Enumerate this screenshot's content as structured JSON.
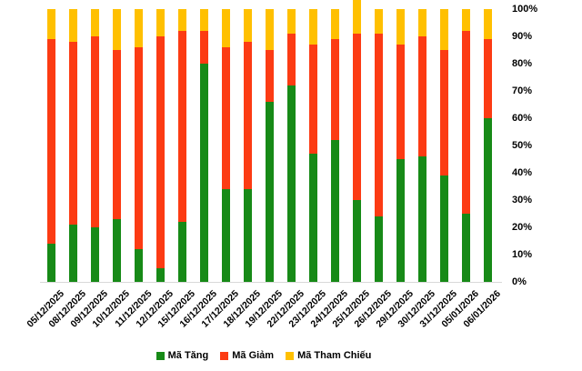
{
  "chart_data": {
    "type": "bar",
    "stacked": true,
    "stacking": "percent",
    "title": "",
    "xlabel": "",
    "ylabel": "",
    "ylim": [
      0,
      100
    ],
    "grid": false,
    "legend_position": "bottom",
    "y_ticks": [
      "0%",
      "10%",
      "20%",
      "30%",
      "40%",
      "50%",
      "60%",
      "70%",
      "80%",
      "90%",
      "100%"
    ],
    "categories": [
      "05/12/2025",
      "08/12/2025",
      "09/12/2025",
      "10/12/2025",
      "11/12/2025",
      "12/12/2025",
      "15/12/2025",
      "16/12/2025",
      "17/12/2025",
      "18/12/2025",
      "19/12/2025",
      "22/12/2025",
      "23/12/2025",
      "24/12/2025",
      "25/12/2025",
      "26/12/2025",
      "29/12/2025",
      "30/12/2025",
      "31/12/2025",
      "05/01/2026",
      "06/01/2026"
    ],
    "series": [
      {
        "name": "Mã Tăng",
        "color": "#178A17",
        "values": [
          14,
          21,
          20,
          23,
          12,
          5,
          22,
          80,
          34,
          34,
          66,
          72,
          47,
          52,
          30,
          24,
          45,
          46,
          39,
          25,
          60
        ]
      },
      {
        "name": "Mã Giảm",
        "color": "#FC3B13",
        "values": [
          75,
          67,
          70,
          62,
          74,
          85,
          70,
          12,
          52,
          54,
          19,
          19,
          40,
          37,
          61,
          67,
          42,
          44,
          46,
          67,
          29
        ]
      },
      {
        "name": "Mã Tham Chiếu",
        "color": "#FFC000",
        "values": [
          11,
          12,
          10,
          15,
          14,
          10,
          8,
          8,
          14,
          12,
          15,
          9,
          13,
          11,
          15,
          9,
          13,
          10,
          15,
          8,
          11
        ]
      }
    ]
  }
}
